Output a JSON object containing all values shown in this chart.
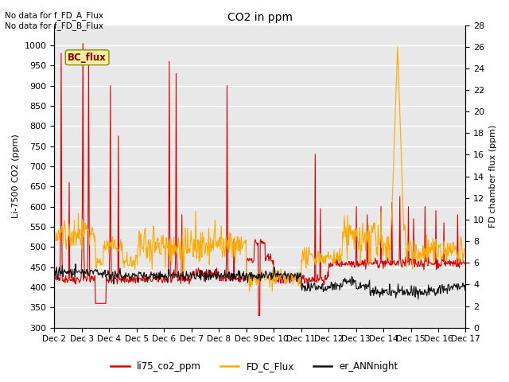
{
  "title": "CO2 in ppm",
  "ylabel_left": "Li-7500 CO2 (ppm)",
  "ylabel_right": "FD chamber flux (ppm)",
  "ylim_left": [
    300,
    1050
  ],
  "ylim_right": [
    0,
    28
  ],
  "yticks_left": [
    300,
    350,
    400,
    450,
    500,
    550,
    600,
    650,
    700,
    750,
    800,
    850,
    900,
    950,
    1000
  ],
  "yticks_right": [
    0,
    2,
    4,
    6,
    8,
    10,
    12,
    14,
    16,
    18,
    20,
    22,
    24,
    26,
    28
  ],
  "xtick_labels": [
    "Dec 2",
    "Dec 3",
    "Dec 4",
    "Dec 5",
    "Dec 6",
    "Dec 7",
    "Dec 8",
    "Dec 9",
    "Dec 10",
    "Dec 11",
    "Dec 12",
    "Dec 13",
    "Dec 14",
    "Dec 15",
    "Dec 16",
    "Dec 17"
  ],
  "annotation_top_left": "No data for f_FD_A_Flux\nNo data for f_FD_B_Flux",
  "bc_flux_label": "BC_flux",
  "legend_entries": [
    "li75_co2_ppm",
    "FD_C_Flux",
    "er_ANNnight"
  ],
  "line_colors": [
    "#dd0000",
    "#ffaa00",
    "#111111"
  ],
  "background_color": "#e8e8e8",
  "grid_color": "#ffffff"
}
